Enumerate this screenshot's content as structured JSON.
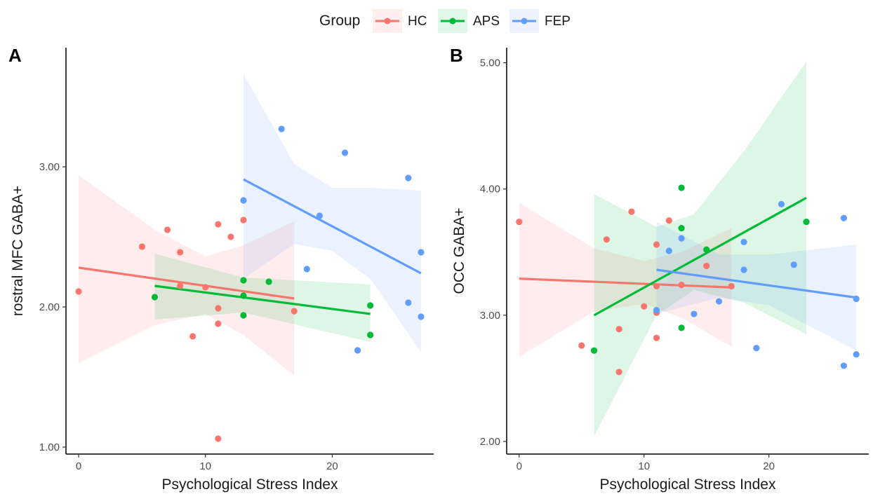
{
  "legend": {
    "title": "Group",
    "items": [
      {
        "label": "HC",
        "color": "#F8766D"
      },
      {
        "label": "APS",
        "color": "#00BA38"
      },
      {
        "label": "FEP",
        "color": "#619CFF"
      }
    ]
  },
  "chart_data": [
    {
      "type": "scatter",
      "panel": "A",
      "xlabel": "Psychological Stress Index",
      "ylabel": "rostral MFC GABA+",
      "xlim": [
        -1,
        28
      ],
      "ylim": [
        0.95,
        3.85
      ],
      "xticks": [
        {
          "v": 0,
          "label": "0"
        },
        {
          "v": 10,
          "label": "10"
        },
        {
          "v": 20,
          "label": "20"
        }
      ],
      "yticks": [
        {
          "v": 1,
          "label": "1.00"
        },
        {
          "v": 2,
          "label": "2.00"
        },
        {
          "v": 3,
          "label": "3.00"
        }
      ],
      "grid": false,
      "series": [
        {
          "name": "HC",
          "color": "#F8766D",
          "points": [
            [
              0,
              2.11
            ],
            [
              5,
              2.43
            ],
            [
              7,
              2.55
            ],
            [
              8,
              2.39
            ],
            [
              8,
              2.15
            ],
            [
              9,
              1.79
            ],
            [
              10,
              2.14
            ],
            [
              11,
              2.59
            ],
            [
              11,
              1.99
            ],
            [
              11,
              1.88
            ],
            [
              11,
              1.06
            ],
            [
              12,
              2.5
            ],
            [
              13,
              2.62
            ],
            [
              17,
              1.97
            ]
          ],
          "fit": [
            [
              0,
              2.28
            ],
            [
              17,
              2.06
            ]
          ],
          "band": [
            [
              0,
              1.6,
              2.94
            ],
            [
              6,
              1.87,
              2.55
            ],
            [
              10,
              1.95,
              2.36
            ],
            [
              13,
              1.8,
              2.44
            ],
            [
              17,
              1.51,
              2.61
            ]
          ]
        },
        {
          "name": "APS",
          "color": "#00BA38",
          "points": [
            [
              6,
              2.07
            ],
            [
              13,
              2.19
            ],
            [
              13,
              2.08
            ],
            [
              13,
              1.94
            ],
            [
              15,
              2.18
            ],
            [
              23,
              2.01
            ],
            [
              23,
              1.8
            ]
          ],
          "fit": [
            [
              6,
              2.15
            ],
            [
              23,
              1.95
            ]
          ],
          "band": [
            [
              6,
              1.91,
              2.38
            ],
            [
              13,
              1.96,
              2.21
            ],
            [
              23,
              1.75,
              2.16
            ]
          ]
        },
        {
          "name": "FEP",
          "color": "#619CFF",
          "points": [
            [
              13,
              2.76
            ],
            [
              16,
              3.27
            ],
            [
              18,
              2.27
            ],
            [
              19,
              2.65
            ],
            [
              21,
              3.1
            ],
            [
              22,
              1.69
            ],
            [
              26,
              2.92
            ],
            [
              26,
              2.03
            ],
            [
              27,
              2.39
            ],
            [
              27,
              1.93
            ]
          ],
          "fit": [
            [
              13,
              2.91
            ],
            [
              27,
              2.24
            ]
          ],
          "band": [
            [
              13,
              2.2,
              3.66
            ],
            [
              17,
              2.45,
              3.02
            ],
            [
              20,
              2.4,
              2.85
            ],
            [
              23,
              2.2,
              2.85
            ],
            [
              27,
              1.68,
              2.83
            ]
          ]
        }
      ]
    },
    {
      "type": "scatter",
      "panel": "B",
      "xlabel": "Psychological Stress Index",
      "ylabel": "OCC GABA+",
      "xlim": [
        -1,
        28
      ],
      "ylim": [
        1.9,
        5.12
      ],
      "xticks": [
        {
          "v": 0,
          "label": "0"
        },
        {
          "v": 10,
          "label": "10"
        },
        {
          "v": 20,
          "label": "20"
        }
      ],
      "yticks": [
        {
          "v": 2,
          "label": "2.00"
        },
        {
          "v": 3,
          "label": "3.00"
        },
        {
          "v": 4,
          "label": "4.00"
        },
        {
          "v": 5,
          "label": "5.00"
        }
      ],
      "grid": false,
      "series": [
        {
          "name": "HC",
          "color": "#F8766D",
          "points": [
            [
              0,
              3.74
            ],
            [
              5,
              2.76
            ],
            [
              7,
              3.6
            ],
            [
              8,
              2.89
            ],
            [
              8,
              2.55
            ],
            [
              9,
              3.82
            ],
            [
              10,
              3.07
            ],
            [
              11,
              3.56
            ],
            [
              11,
              3.23
            ],
            [
              11,
              3.02
            ],
            [
              11,
              2.82
            ],
            [
              12,
              3.75
            ],
            [
              13,
              3.24
            ],
            [
              15,
              3.39
            ],
            [
              17,
              3.23
            ]
          ],
          "fit": [
            [
              0,
              3.29
            ],
            [
              17,
              3.22
            ]
          ],
          "band": [
            [
              0,
              2.67,
              3.89
            ],
            [
              6,
              3.03,
              3.53
            ],
            [
              10,
              3.09,
              3.43
            ],
            [
              13,
              2.98,
              3.5
            ],
            [
              17,
              2.75,
              3.69
            ]
          ]
        },
        {
          "name": "APS",
          "color": "#00BA38",
          "points": [
            [
              6,
              2.72
            ],
            [
              13,
              4.01
            ],
            [
              13,
              3.69
            ],
            [
              13,
              2.9
            ],
            [
              15,
              3.52
            ],
            [
              23,
              3.74
            ]
          ],
          "fit": [
            [
              6,
              3.0
            ],
            [
              23,
              3.93
            ]
          ],
          "band": [
            [
              6,
              2.04,
              3.96
            ],
            [
              11,
              3.0,
              3.7
            ],
            [
              14,
              3.2,
              3.8
            ],
            [
              18,
              3.1,
              4.3
            ],
            [
              23,
              2.85,
              5.01
            ]
          ]
        },
        {
          "name": "FEP",
          "color": "#619CFF",
          "points": [
            [
              11,
              3.04
            ],
            [
              12,
              3.51
            ],
            [
              13,
              3.61
            ],
            [
              14,
              3.01
            ],
            [
              16,
              3.11
            ],
            [
              18,
              3.58
            ],
            [
              18,
              3.36
            ],
            [
              19,
              2.74
            ],
            [
              21,
              3.88
            ],
            [
              22,
              3.4
            ],
            [
              26,
              3.77
            ],
            [
              26,
              2.6
            ],
            [
              27,
              3.13
            ],
            [
              27,
              2.69
            ]
          ],
          "fit": [
            [
              11,
              3.36
            ],
            [
              27,
              3.14
            ]
          ],
          "band": [
            [
              11,
              3.01,
              3.74
            ],
            [
              16,
              3.14,
              3.48
            ],
            [
              20,
              3.08,
              3.48
            ],
            [
              27,
              2.72,
              3.56
            ]
          ]
        }
      ]
    }
  ]
}
